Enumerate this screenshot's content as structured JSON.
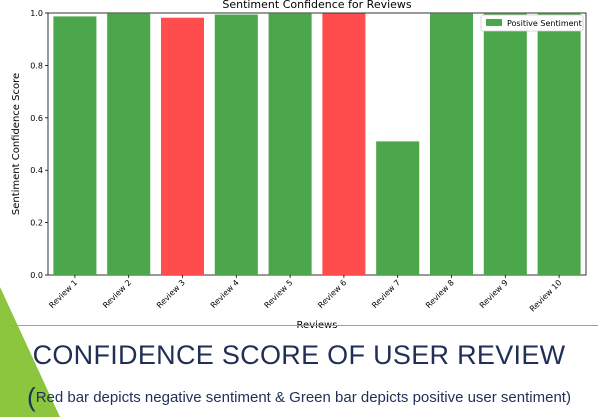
{
  "slide": {
    "heading": "CONFIDENCE SCORE OF USER REVIEW",
    "caption_open": "(",
    "caption": "Red bar depicts negative sentiment  & Green bar depicts positive user sentiment)",
    "colors": {
      "accent": "#8cc63f",
      "text": "#1f2f55"
    }
  },
  "chart_data": {
    "type": "bar",
    "title": "Sentiment Confidence for Reviews",
    "xlabel": "Reviews",
    "ylabel": "Sentiment Confidence Score",
    "ylim": [
      0,
      1.0
    ],
    "yticks": [
      "0.0",
      "0.2",
      "0.4",
      "0.6",
      "0.8",
      "1.0"
    ],
    "categories": [
      "Review 1",
      "Review 2",
      "Review 3",
      "Review 4",
      "Review 5",
      "Review 6",
      "Review 7",
      "Review 8",
      "Review 9",
      "Review 10"
    ],
    "values": [
      0.987,
      0.999,
      0.982,
      0.994,
      0.999,
      0.998,
      0.51,
      0.999,
      0.999,
      0.999
    ],
    "sentiment": [
      "positive",
      "positive",
      "negative",
      "positive",
      "positive",
      "negative",
      "positive",
      "positive",
      "positive",
      "positive"
    ],
    "legend": {
      "label": "Positive Sentiment",
      "placement": "top-right"
    },
    "colors": {
      "positive": "#4ca64c",
      "negative": "#ff4c4c"
    },
    "grid": false
  }
}
